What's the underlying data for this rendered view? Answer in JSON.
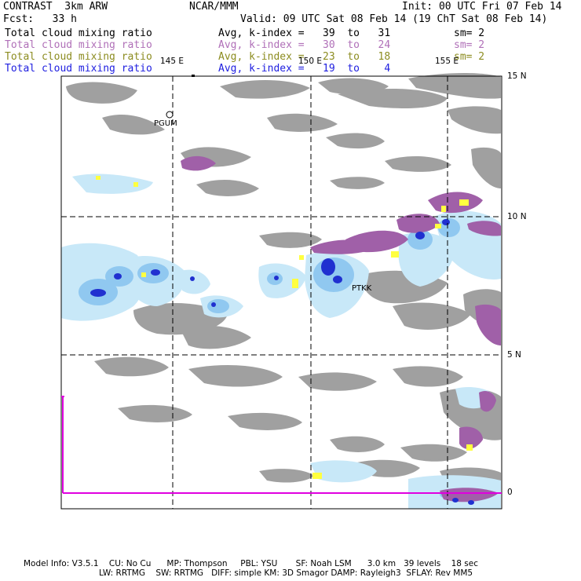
{
  "header": {
    "title": "CONTRAST  3km ARW",
    "center": "NCAR/MMM",
    "init": "Init: 00 UTC Fri 07 Feb 14",
    "fcst": "Fcst:   33 h",
    "valid": "Valid: 09 UTC Sat 08 Feb 14 (19 ChT Sat 08 Feb 14)"
  },
  "fields": [
    {
      "name": "Total cloud mixing ratio",
      "stat": "Avg, k-index =   39  to   31",
      "sm": "sm= 2",
      "color": "#000000"
    },
    {
      "name": "Total cloud mixing ratio",
      "stat": "Avg, k-index =   30  to   24",
      "sm": "sm= 2",
      "color": "#b070b8"
    },
    {
      "name": "Total cloud mixing ratio",
      "stat": "Avg, k-index =   23  to   18",
      "sm": "sm= 2",
      "color": "#8c8c20"
    },
    {
      "name": "Total cloud mixing ratio",
      "stat": "Avg, k-index =   19  to    4",
      "sm": "",
      "color": "#2020e0"
    }
  ],
  "map": {
    "lon_labels": [
      "145 E",
      "150 E",
      "155 E"
    ],
    "lat_labels": [
      "15 N",
      "10 N",
      "5 N",
      "0"
    ],
    "places": [
      "PGUM",
      "PTKK"
    ],
    "colors": {
      "low_cloud_gray": "#a0a0a0",
      "purple_cloud": "#a060a8",
      "light_blue": "#c8e8f8",
      "mid_blue": "#90c8f0",
      "dark_blue": "#2030d0",
      "yellow": "#ffff40",
      "magenta_line": "#e000e0"
    }
  },
  "footer": {
    "line1": "Model Info: V3.5.1    CU: No Cu      MP: Thompson     PBL: YSU       SF: Noah LSM      3.0 km   39 levels    18 sec",
    "line2": "LW: RRTMG    SW: RRTMG   DIFF: simple KM: 3D Smagor DAMP: Rayleigh3  SFLAY: Rev MM5"
  }
}
